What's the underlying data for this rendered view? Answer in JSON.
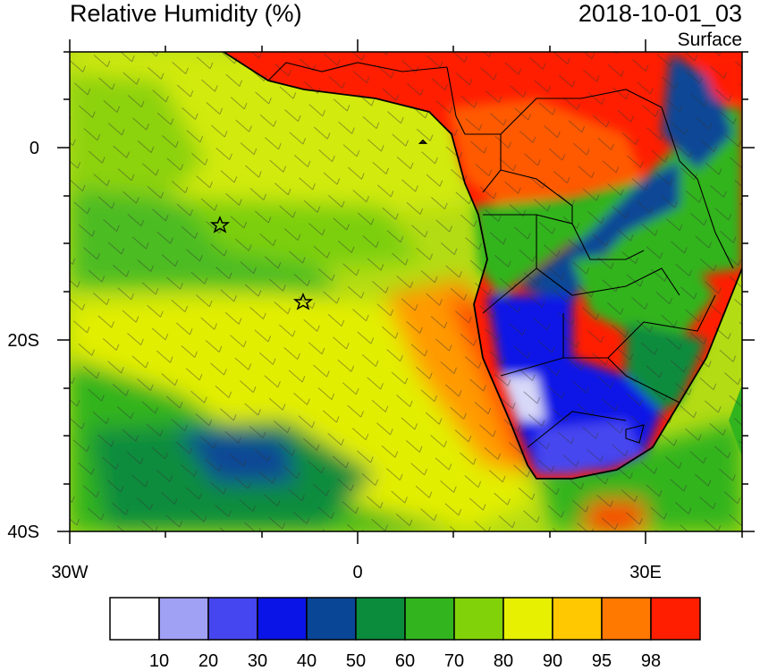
{
  "header": {
    "title": "Relative Humidity (%)",
    "datetime": "2018-10-01_03",
    "level": "Surface"
  },
  "axes": {
    "x_ticks": [
      {
        "lon": -30,
        "label": "30W"
      },
      {
        "lon": 0,
        "label": "0"
      },
      {
        "lon": 30,
        "label": "30E"
      }
    ],
    "y_ticks": [
      {
        "lat": 0,
        "label": "0"
      },
      {
        "lat": -20,
        "label": "20S"
      },
      {
        "lat": -40,
        "label": "40S"
      }
    ],
    "lon_range": [
      -30,
      40
    ],
    "lat_range": [
      -40,
      10
    ]
  },
  "colorbar": {
    "colors": [
      "#ffffff",
      "#a0a0f5",
      "#4646f0",
      "#0a14e6",
      "#0a4696",
      "#0a8c3c",
      "#32b41e",
      "#82d20a",
      "#e6f000",
      "#ffc800",
      "#ff7800",
      "#ff1e00"
    ],
    "labels": [
      "10",
      "20",
      "30",
      "40",
      "50",
      "60",
      "70",
      "80",
      "90",
      "95",
      "98"
    ]
  },
  "markers": [
    {
      "name": "star-marker-1",
      "lon": -14.5,
      "lat": -8
    },
    {
      "name": "star-marker-2",
      "lon": -5.7,
      "lat": -16
    }
  ]
}
